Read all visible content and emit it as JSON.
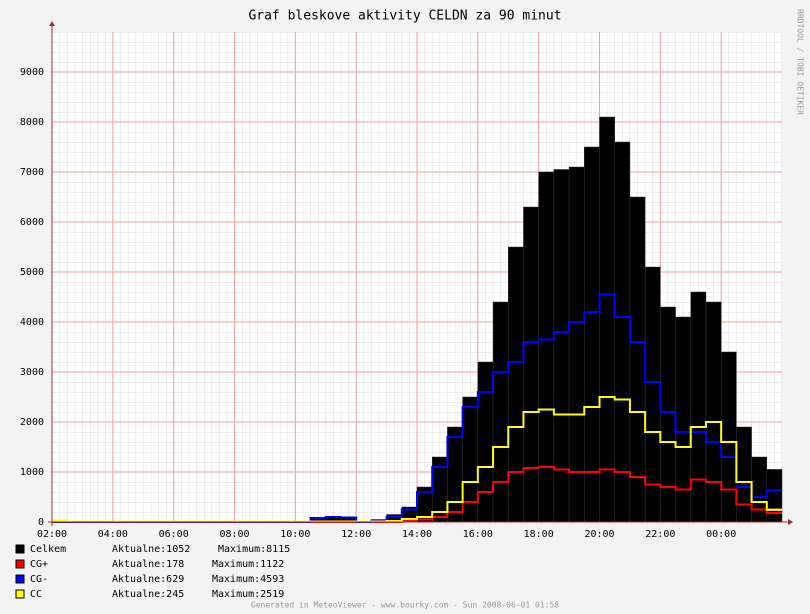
{
  "chart_data": {
    "type": "bar",
    "title": "Graf bleskove aktivity CELDN za 90 minut",
    "side_label": "RRDTOOL / TOBI OETIKER",
    "footer": "Generated in MeteoViewer - www.bourky.com - Sun 2008-06-01 01:58",
    "x": [
      2,
      2.5,
      3,
      3.5,
      4,
      4.5,
      5,
      5.5,
      6,
      6.5,
      7,
      7.5,
      8,
      8.5,
      9,
      9.5,
      10,
      10.5,
      11,
      11.5,
      12,
      12.5,
      13,
      13.5,
      14,
      14.5,
      15,
      15.5,
      16,
      16.5,
      17,
      17.5,
      18,
      18.5,
      19,
      19.5,
      20,
      20.5,
      21,
      21.5,
      22,
      22.5,
      23,
      23.5,
      24,
      24.5,
      25,
      25.5
    ],
    "xlim": [
      2,
      26
    ],
    "xticks": [
      {
        "value": 2,
        "label": "02:00"
      },
      {
        "value": 4,
        "label": "04:00"
      },
      {
        "value": 6,
        "label": "06:00"
      },
      {
        "value": 8,
        "label": "08:00"
      },
      {
        "value": 10,
        "label": "10:00"
      },
      {
        "value": 12,
        "label": "12:00"
      },
      {
        "value": 14,
        "label": "14:00"
      },
      {
        "value": 16,
        "label": "16:00"
      },
      {
        "value": 18,
        "label": "18:00"
      },
      {
        "value": 20,
        "label": "20:00"
      },
      {
        "value": 22,
        "label": "22:00"
      },
      {
        "value": 24,
        "label": "00:00"
      }
    ],
    "ylim": [
      0,
      9800
    ],
    "yticks": [
      0,
      1000,
      2000,
      3000,
      4000,
      5000,
      6000,
      7000,
      8000,
      9000
    ],
    "grid": true,
    "series": [
      {
        "name": "Celkem",
        "color": "#000000",
        "mark": "bar",
        "stats": [
          "Aktualne:1052",
          "Maximum:8115"
        ],
        "values": [
          20,
          20,
          10,
          10,
          10,
          10,
          10,
          10,
          10,
          10,
          10,
          10,
          10,
          10,
          10,
          10,
          10,
          80,
          100,
          90,
          10,
          50,
          150,
          300,
          700,
          1300,
          1900,
          2500,
          3200,
          4400,
          5500,
          6300,
          7000,
          7050,
          7100,
          7500,
          8100,
          7600,
          6500,
          5100,
          4300,
          4100,
          4600,
          4400,
          3400,
          1900,
          1300,
          1052
        ]
      },
      {
        "name": "CG+",
        "color": "#ff0000",
        "mark": "step",
        "stats": [
          "Aktualne:178",
          "Maximum:1122"
        ],
        "values": [
          0,
          0,
          0,
          0,
          0,
          0,
          0,
          0,
          0,
          0,
          0,
          0,
          0,
          0,
          0,
          0,
          0,
          0,
          0,
          0,
          0,
          0,
          0,
          20,
          50,
          100,
          200,
          400,
          600,
          800,
          1000,
          1080,
          1100,
          1050,
          1000,
          1000,
          1050,
          1000,
          900,
          750,
          700,
          650,
          850,
          800,
          650,
          350,
          250,
          178
        ]
      },
      {
        "name": "CG-",
        "color": "#0000ff",
        "mark": "step",
        "stats": [
          "Aktualne:629",
          "Maximum:4593"
        ],
        "values": [
          0,
          0,
          0,
          0,
          0,
          0,
          0,
          0,
          0,
          0,
          0,
          0,
          0,
          0,
          0,
          0,
          0,
          80,
          100,
          90,
          0,
          30,
          100,
          250,
          600,
          1100,
          1700,
          2300,
          2600,
          3000,
          3200,
          3600,
          3650,
          3800,
          4000,
          4200,
          4550,
          4100,
          3600,
          2800,
          2200,
          1800,
          1800,
          1600,
          1300,
          700,
          500,
          629
        ]
      },
      {
        "name": "CC",
        "color": "#ffff00",
        "mark": "step",
        "stats": [
          "Aktualne:245",
          "Maximum:2519"
        ],
        "values": [
          30,
          10,
          10,
          10,
          10,
          10,
          10,
          10,
          10,
          10,
          10,
          10,
          10,
          10,
          10,
          10,
          10,
          10,
          10,
          10,
          10,
          10,
          20,
          60,
          100,
          200,
          400,
          800,
          1100,
          1500,
          1900,
          2200,
          2250,
          2150,
          2150,
          2300,
          2500,
          2450,
          2200,
          1800,
          1600,
          1500,
          1900,
          2000,
          1600,
          800,
          400,
          245
        ]
      }
    ]
  }
}
